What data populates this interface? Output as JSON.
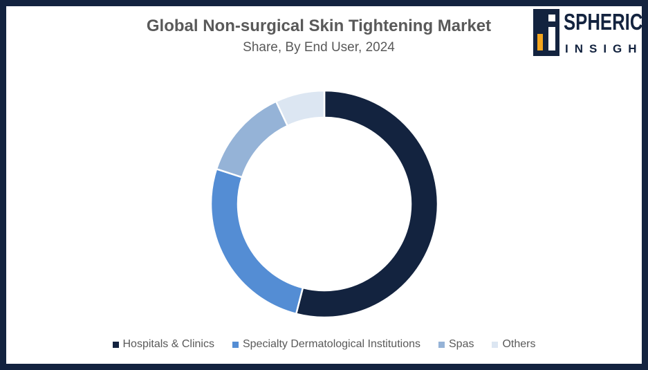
{
  "chart_data": {
    "type": "pie",
    "title": "Global Non-surgical Skin Tightening Market",
    "subtitle": "Share, By End User, 2024",
    "categories": [
      "Hospitals & Clinics",
      "Specialty Dermatological Institutions",
      "Spas",
      "Others"
    ],
    "values": [
      54,
      26,
      13,
      7
    ],
    "colors": [
      "#13233f",
      "#548dd4",
      "#95b3d7",
      "#dce6f2"
    ],
    "donut": true,
    "legend_position": "bottom"
  },
  "logo": {
    "word1": "SPHERICAL",
    "word2": "INSIGHTS"
  }
}
